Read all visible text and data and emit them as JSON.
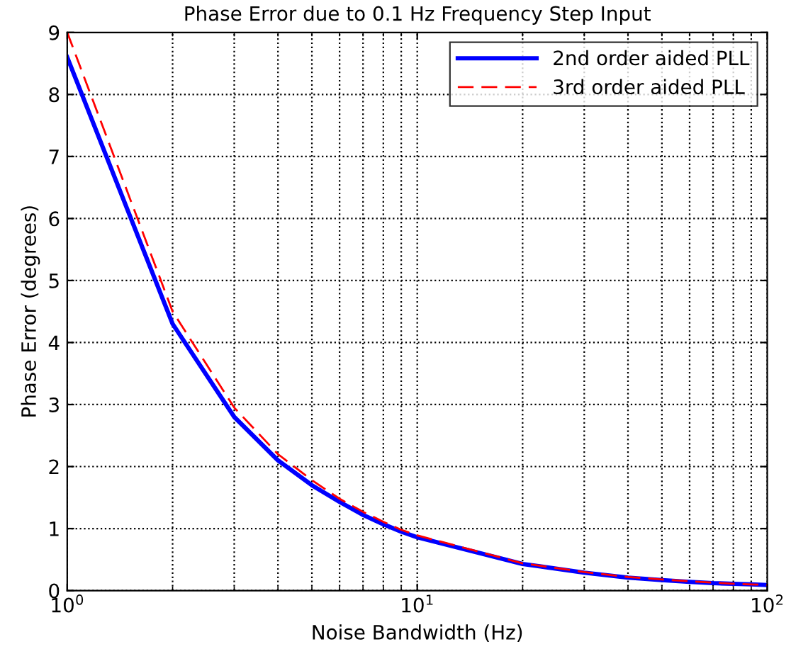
{
  "chart_data": {
    "type": "line",
    "title": "Phase Error due to 0.1 Hz Frequency Step Input",
    "xlabel": "Noise Bandwidth (Hz)",
    "ylabel": "Phase Error (degrees)",
    "log": "x",
    "xlim": [
      1,
      100
    ],
    "xticks": [
      {
        "value": 1,
        "label": "10$^{0}$"
      },
      {
        "value": 10,
        "label": "10$^{1}$"
      },
      {
        "value": 100,
        "label": "10$^{2}$"
      }
    ],
    "ylim": [
      0,
      9
    ],
    "yticks": [
      0,
      1,
      2,
      3,
      4,
      5,
      6,
      7,
      8,
      9
    ],
    "grid": true,
    "legend": "top right",
    "series": [
      {
        "name": "2nd order aided PLL",
        "color": "#0000ff",
        "line_style": "solid",
        "x": [
          1,
          2,
          3,
          4,
          5,
          6,
          7,
          8,
          9,
          10,
          20,
          30,
          40,
          50,
          60,
          70,
          80,
          90,
          100
        ],
        "values": [
          8.6,
          4.3,
          2.8,
          2.1,
          1.7,
          1.43,
          1.22,
          1.07,
          0.95,
          0.86,
          0.43,
          0.29,
          0.21,
          0.17,
          0.14,
          0.12,
          0.11,
          0.1,
          0.09
        ]
      },
      {
        "name": "3rd order aided PLL",
        "color": "#ff0000",
        "line_style": "dashed",
        "x": [
          1,
          2,
          3,
          4,
          5,
          6,
          7,
          8,
          9,
          10,
          20,
          30,
          40,
          50,
          60,
          70,
          80,
          90,
          100
        ],
        "values": [
          9.0,
          4.5,
          2.95,
          2.2,
          1.78,
          1.48,
          1.27,
          1.11,
          0.98,
          0.89,
          0.44,
          0.3,
          0.22,
          0.18,
          0.15,
          0.13,
          0.11,
          0.1,
          0.09
        ]
      }
    ]
  }
}
